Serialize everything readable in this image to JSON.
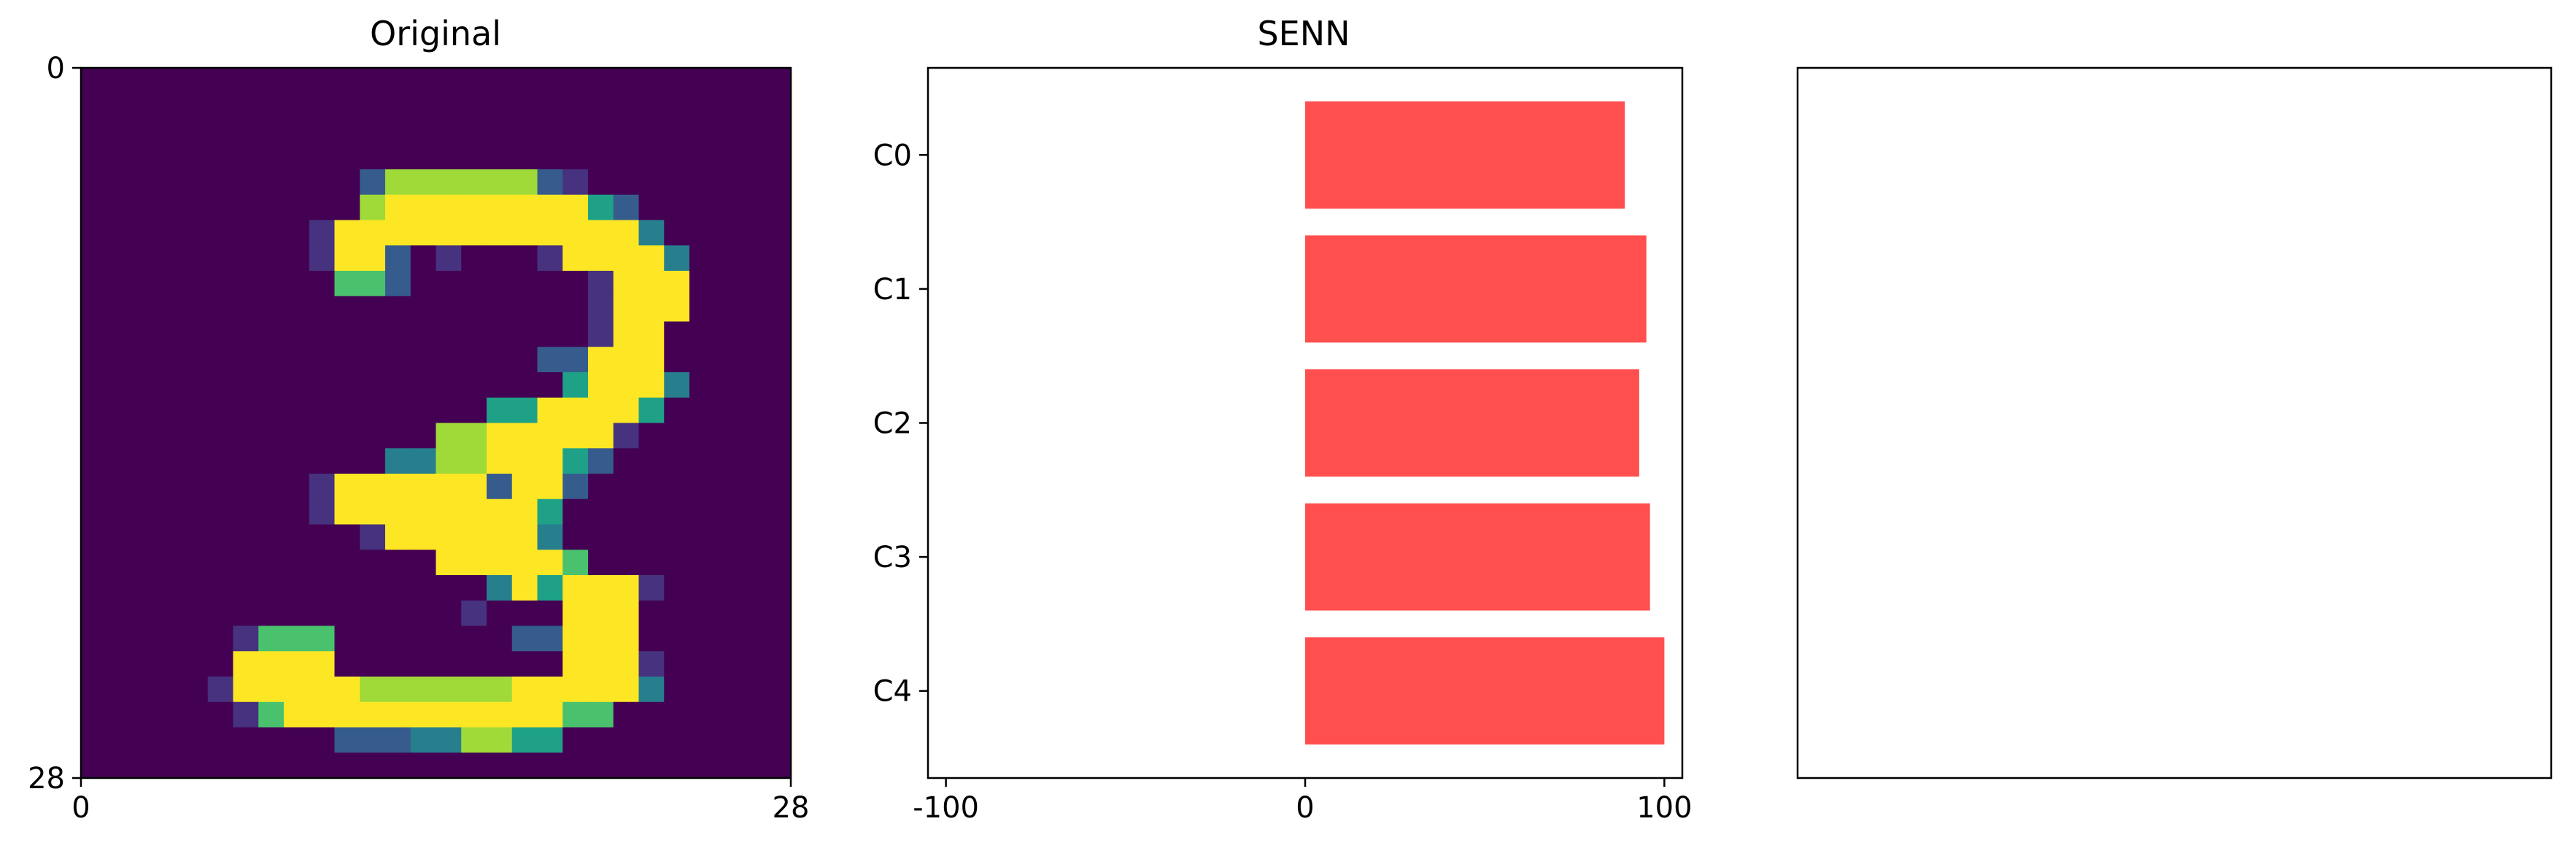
{
  "chart_data": [
    {
      "type": "heatmap",
      "title": "Original",
      "colormap": "viridis",
      "xlim": [
        0,
        28
      ],
      "ylim": [
        28,
        0
      ],
      "xticks": [
        "0",
        "28"
      ],
      "yticks": [
        "0",
        "28"
      ],
      "grid_size": [
        28,
        28
      ],
      "image": [
        "0000000000000000000000000000",
        "0000000000000000000000000000",
        "0000000000000000000000000000",
        "0000000000000000000000000000",
        "0000000000026666662100000000",
        "0000000000067777777742000000",
        "0000000001777888777777300000",
        "0000000001772010001777730000",
        "0000000000552000000017770000",
        "0000000000000000000017770000",
        "0000000000000000000017700000",
        "0000000000000000002277700000",
        "0000000000000000000477730000",
        "0000000000000000447777400000",
        "0000000000000066777771000000",
        "0000000000003366777420000000",
        "0000000001777777277200000000",
        "0000000001777777774000000000",
        "0000000000017777773000000000",
        "0000000000000077777500000000",
        "0000000000000000374777100000",
        "0000000000000001000777000000",
        "0000001555000000022777000000",
        "0000007777000000000777100000",
        "0000017777766666677777300000",
        "0000001577777777777550000000",
        "0000000000222336644000000000",
        "0000000000000000000000000000"
      ]
    },
    {
      "type": "bar",
      "orientation": "horizontal",
      "title": "SENN",
      "categories": [
        "C0",
        "C1",
        "C2",
        "C3",
        "C4"
      ],
      "values": [
        89,
        95,
        93,
        96,
        100
      ],
      "xlim": [
        -105,
        105
      ],
      "xticks": [
        "-100",
        "0",
        "100"
      ],
      "color": "#ff4f4f"
    },
    {
      "type": "bar",
      "title": "",
      "categories": [],
      "values": []
    }
  ]
}
